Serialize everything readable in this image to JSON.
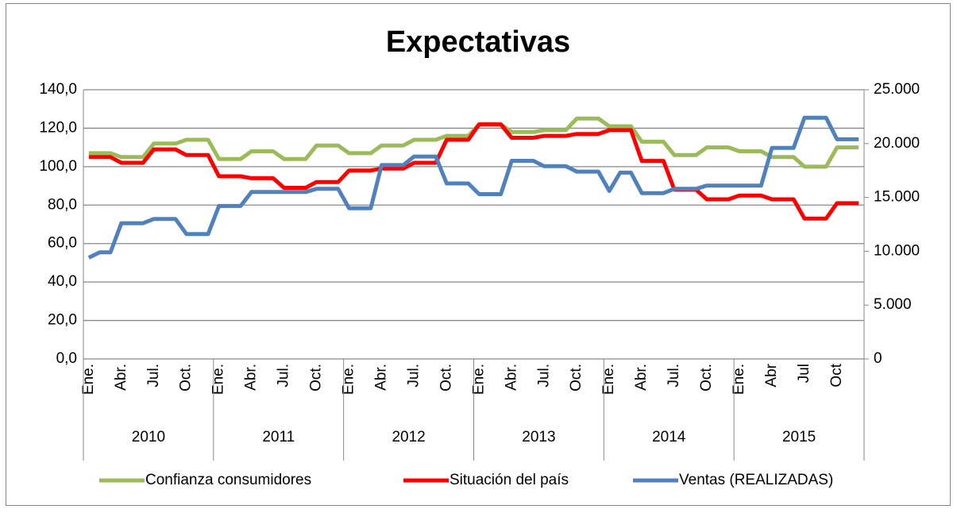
{
  "chart_data": {
    "type": "line",
    "title": "Expectativas",
    "categories": [
      "Ene.",
      null,
      null,
      "Abr.",
      null,
      null,
      "Jul.",
      null,
      null,
      "Oct.",
      null,
      null,
      "Ene.",
      null,
      null,
      "Abr.",
      null,
      null,
      "Jul.",
      null,
      null,
      "Oct.",
      null,
      null,
      "Ene.",
      null,
      null,
      "Abr.",
      null,
      null,
      "Jul.",
      null,
      null,
      "Oct.",
      null,
      null,
      "Ene.",
      null,
      null,
      "Abr.",
      null,
      null,
      "Jul.",
      null,
      null,
      "Oct.",
      null,
      null,
      "Ene.",
      null,
      null,
      "Abr.",
      null,
      null,
      "Jul.",
      null,
      null,
      "Oct.",
      null,
      null,
      "Ene.",
      null,
      null,
      "Abr",
      null,
      null,
      "Jul",
      null,
      null,
      "Oct",
      null,
      null
    ],
    "category_groups": [
      "2010",
      "2011",
      "2012",
      "2013",
      "2014",
      "2015"
    ],
    "series": [
      {
        "name": "Confianza consumidores",
        "color": "#9bbb59",
        "values": [
          107,
          107,
          107,
          105,
          105,
          105,
          112,
          112,
          112,
          114,
          114,
          114,
          104,
          104,
          104,
          108,
          108,
          108,
          104,
          104,
          104,
          111,
          111,
          111,
          107,
          107,
          107,
          111,
          111,
          111,
          114,
          114,
          114,
          116,
          116,
          116,
          122,
          122,
          122,
          118,
          118,
          118,
          119,
          119,
          119,
          125,
          125,
          125,
          121,
          121,
          121,
          113,
          113,
          113,
          106,
          106,
          106,
          110,
          110,
          110,
          108,
          108,
          108,
          105,
          105,
          105,
          100,
          100,
          100,
          110,
          110,
          110
        ]
      },
      {
        "name": "Situación del país",
        "color": "#ff0000",
        "values": [
          105,
          105,
          105,
          102,
          102,
          102,
          109,
          109,
          109,
          106,
          106,
          106,
          95,
          95,
          95,
          94,
          94,
          94,
          89,
          89,
          89,
          92,
          92,
          92,
          98,
          98,
          98,
          99,
          99,
          99,
          102,
          102,
          102,
          114,
          114,
          114,
          122,
          122,
          122,
          115,
          115,
          115,
          116,
          116,
          116,
          117,
          117,
          117,
          119,
          119,
          119,
          103,
          103,
          103,
          88,
          88,
          88,
          83,
          83,
          83,
          85,
          85,
          85,
          83,
          83,
          83,
          73,
          73,
          73,
          81,
          81,
          81
        ]
      },
      {
        "name": "Ventas (REALIZADAS)",
        "color": "#4f81bd",
        "axis": "y2",
        "values": [
          9400,
          9900,
          9900,
          12600,
          12600,
          12600,
          13000,
          13000,
          13000,
          11600,
          11600,
          11600,
          14200,
          14200,
          14200,
          15500,
          15500,
          15500,
          15500,
          15500,
          15500,
          15800,
          15800,
          15800,
          14000,
          14000,
          14000,
          18000,
          18000,
          18000,
          18800,
          18800,
          18800,
          16300,
          16300,
          16300,
          15300,
          15300,
          15300,
          18400,
          18400,
          18400,
          17900,
          17900,
          17900,
          17400,
          17400,
          17400,
          15600,
          17300,
          17300,
          15400,
          15400,
          15400,
          15800,
          15800,
          15800,
          16100,
          16100,
          16100,
          16100,
          16100,
          16100,
          19600,
          19600,
          19600,
          22400,
          22400,
          22400,
          20400,
          20400,
          20400
        ]
      }
    ],
    "ylim": [
      0,
      140
    ],
    "yticks": [
      {
        "value": 0,
        "label": "0,0"
      },
      {
        "value": 20,
        "label": "20,0"
      },
      {
        "value": 40,
        "label": "40,0"
      },
      {
        "value": 60,
        "label": "60,0"
      },
      {
        "value": 80,
        "label": "80,0"
      },
      {
        "value": 100,
        "label": "100,0"
      },
      {
        "value": 120,
        "label": "120,0"
      },
      {
        "value": 140,
        "label": "140,0"
      }
    ],
    "y2lim": [
      0,
      25000
    ],
    "y2ticks": [
      0,
      {
        "value": 5000,
        "label": "5.000"
      },
      {
        "value": 10000,
        "label": "10.000"
      },
      {
        "value": 15000,
        "label": "15.000"
      },
      {
        "value": 20000,
        "label": "20.000"
      },
      {
        "value": 25000,
        "label": "25.000"
      }
    ],
    "grid": true,
    "legend": "bottom"
  }
}
